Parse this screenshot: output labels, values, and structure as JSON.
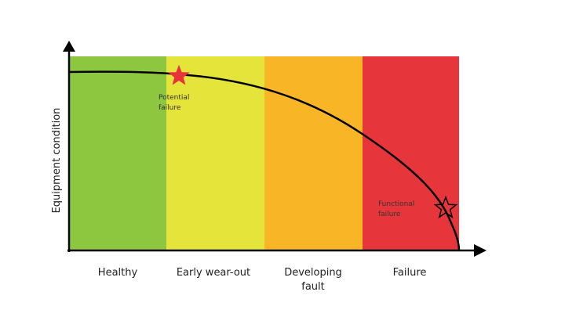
{
  "axes": {
    "y_label": "Equipment condition"
  },
  "zones": [
    {
      "lines": [
        "Healthy"
      ]
    },
    {
      "lines": [
        "Early wear-out"
      ]
    },
    {
      "lines": [
        "Developing",
        "fault"
      ]
    },
    {
      "lines": [
        "Failure"
      ]
    }
  ],
  "annotations": [
    {
      "lines": [
        "Potential",
        "failure"
      ]
    },
    {
      "lines": [
        "Functional",
        "failure"
      ]
    }
  ]
}
